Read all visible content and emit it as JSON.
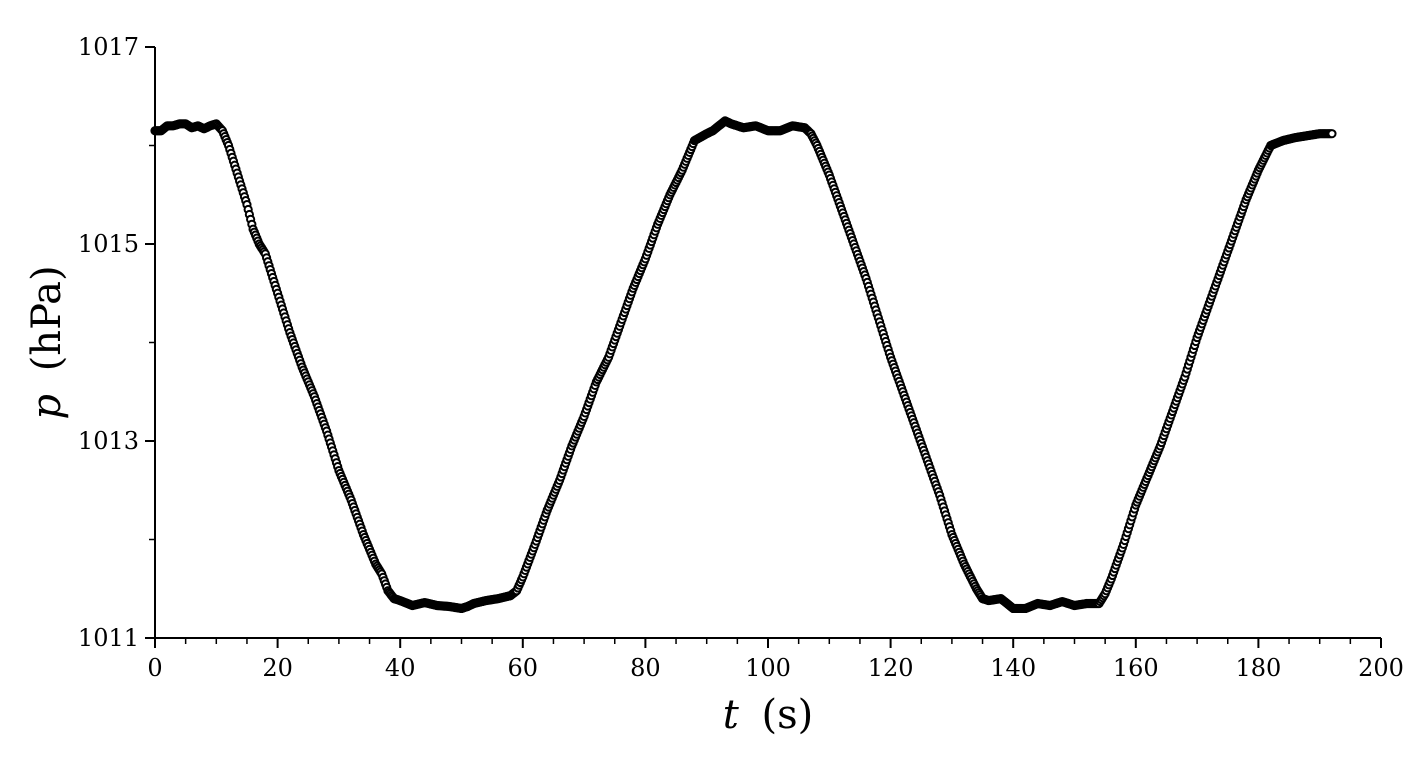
{
  "chart_data": {
    "type": "scatter",
    "title": "",
    "xlabel": {
      "var": "t",
      "unit": "(s)"
    },
    "ylabel": {
      "var": "p",
      "unit": "(hPa)"
    },
    "xlim": [
      0,
      200
    ],
    "ylim": [
      1011,
      1017
    ],
    "x_ticks": [
      0,
      20,
      40,
      60,
      80,
      100,
      120,
      140,
      160,
      180,
      200
    ],
    "y_ticks": [
      1011,
      1013,
      1015,
      1017
    ],
    "grid": false,
    "legend": "none",
    "marker": "open-circle",
    "colors": {
      "marker_edge": "#000000",
      "marker_face": "#ffffff",
      "axis": "#000000"
    },
    "series": [
      {
        "x": [
          0,
          1,
          2,
          3,
          4,
          5,
          6,
          7,
          8,
          9,
          10,
          11,
          12,
          13,
          14,
          15,
          16,
          17,
          18,
          19,
          20,
          22,
          24,
          26,
          28,
          30,
          32,
          34,
          36,
          37,
          38,
          39,
          40,
          42,
          44,
          46,
          48,
          50,
          51,
          52,
          54,
          56,
          58,
          59,
          60,
          62,
          64,
          66,
          68,
          70,
          72,
          74,
          76,
          78,
          80,
          82,
          84,
          86,
          87,
          88,
          90,
          91,
          92,
          93,
          94,
          96,
          98,
          100,
          102,
          104,
          106,
          107,
          108,
          110,
          112,
          114,
          116,
          118,
          120,
          122,
          124,
          126,
          128,
          130,
          132,
          134,
          135,
          136,
          138,
          140,
          142,
          144,
          146,
          148,
          150,
          152,
          154,
          155,
          156,
          158,
          160,
          162,
          164,
          166,
          168,
          170,
          172,
          174,
          176,
          178,
          180,
          182,
          184,
          186,
          188,
          190,
          192
        ],
        "y": [
          1016.15,
          1016.15,
          1016.2,
          1016.2,
          1016.22,
          1016.22,
          1016.18,
          1016.2,
          1016.17,
          1016.2,
          1016.22,
          1016.15,
          1016.0,
          1015.8,
          1015.6,
          1015.4,
          1015.15,
          1015.0,
          1014.9,
          1014.7,
          1014.5,
          1014.1,
          1013.75,
          1013.45,
          1013.1,
          1012.7,
          1012.4,
          1012.05,
          1011.75,
          1011.65,
          1011.48,
          1011.4,
          1011.38,
          1011.33,
          1011.36,
          1011.33,
          1011.32,
          1011.3,
          1011.32,
          1011.35,
          1011.38,
          1011.4,
          1011.43,
          1011.48,
          1011.62,
          1011.95,
          1012.3,
          1012.6,
          1012.95,
          1013.25,
          1013.6,
          1013.85,
          1014.2,
          1014.55,
          1014.85,
          1015.2,
          1015.5,
          1015.75,
          1015.9,
          1016.05,
          1016.12,
          1016.15,
          1016.2,
          1016.25,
          1016.22,
          1016.18,
          1016.2,
          1016.15,
          1016.15,
          1016.2,
          1016.18,
          1016.12,
          1016.0,
          1015.7,
          1015.35,
          1015.0,
          1014.65,
          1014.25,
          1013.85,
          1013.5,
          1013.15,
          1012.8,
          1012.45,
          1012.05,
          1011.75,
          1011.5,
          1011.4,
          1011.38,
          1011.4,
          1011.3,
          1011.3,
          1011.35,
          1011.33,
          1011.37,
          1011.33,
          1011.35,
          1011.35,
          1011.45,
          1011.6,
          1011.95,
          1012.35,
          1012.65,
          1012.95,
          1013.3,
          1013.65,
          1014.05,
          1014.4,
          1014.75,
          1015.1,
          1015.45,
          1015.75,
          1016.0,
          1016.05,
          1016.08,
          1016.1,
          1016.12,
          1016.12
        ]
      }
    ]
  }
}
